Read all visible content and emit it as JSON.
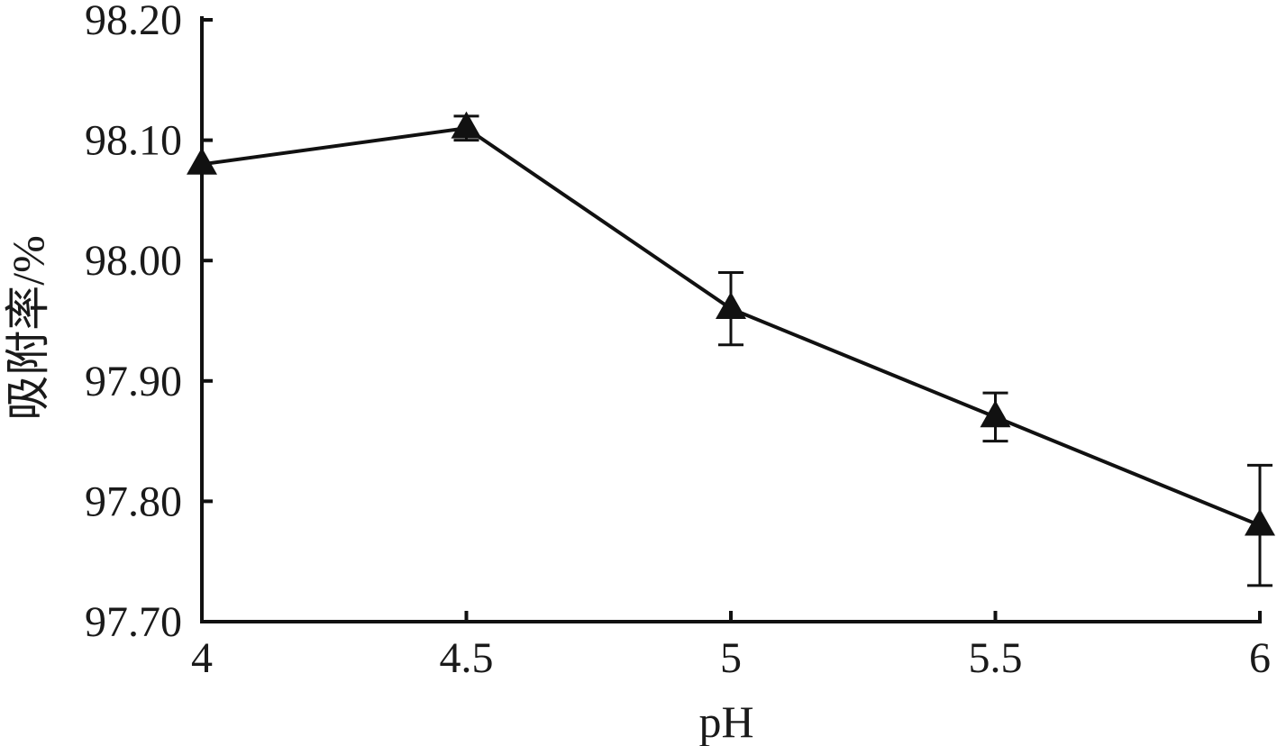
{
  "chart_data": {
    "type": "line",
    "title": "",
    "xlabel": "pH",
    "ylabel": "吸附率/%",
    "x": [
      4,
      4.5,
      5,
      5.5,
      6
    ],
    "x_tick_labels": [
      "4",
      "4.5",
      "5",
      "5.5",
      "6"
    ],
    "xlim": [
      4,
      6
    ],
    "ylim": [
      97.7,
      98.2
    ],
    "y_ticks": [
      97.7,
      97.8,
      97.9,
      98.0,
      98.1,
      98.2
    ],
    "y_tick_labels": [
      "97.70",
      "97.80",
      "97.90",
      "98.00",
      "98.10",
      "98.20"
    ],
    "grid": false,
    "series": [
      {
        "values": [
          98.08,
          98.11,
          97.96,
          97.87,
          97.78
        ],
        "error": [
          0,
          0.01,
          0.03,
          0.02,
          0.05
        ],
        "marker": "triangle",
        "color": "#111111"
      }
    ]
  }
}
